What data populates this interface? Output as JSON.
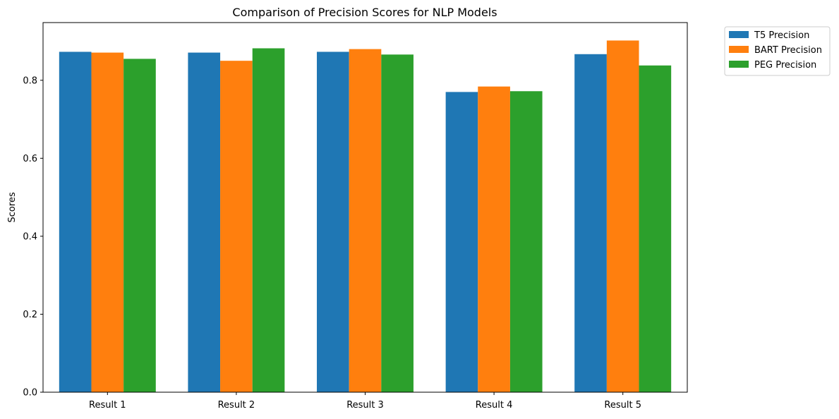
{
  "chart_data": {
    "type": "bar",
    "title": "Comparison of Precision Scores for NLP Models",
    "xlabel": "",
    "ylabel": "Scores",
    "categories": [
      "Result 1",
      "Result 2",
      "Result 3",
      "Result 4",
      "Result 5"
    ],
    "series": [
      {
        "name": "T5 Precision",
        "color": "#1f77b4",
        "values": [
          0.873,
          0.871,
          0.873,
          0.77,
          0.867
        ]
      },
      {
        "name": "BART Precision",
        "color": "#ff7f0e",
        "values": [
          0.871,
          0.85,
          0.88,
          0.784,
          0.902
        ]
      },
      {
        "name": "PEG Precision",
        "color": "#2ca02c",
        "values": [
          0.855,
          0.882,
          0.866,
          0.772,
          0.838
        ]
      }
    ],
    "ylim": [
      0,
      0.948
    ],
    "yticks": [
      "0.0",
      "0.2",
      "0.4",
      "0.6",
      "0.8"
    ],
    "grid": false,
    "legend_position": "outside-top-right"
  }
}
